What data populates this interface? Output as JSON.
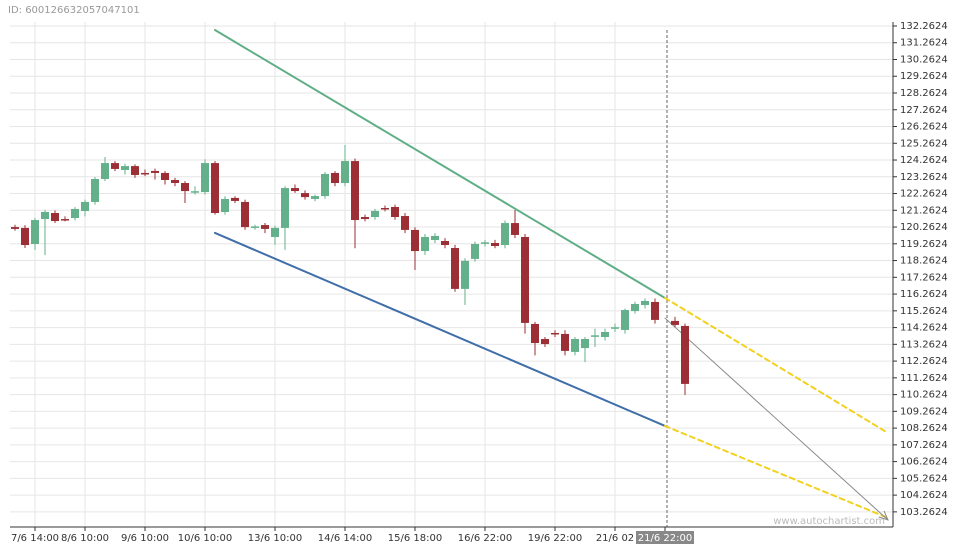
{
  "id_label": "ID: 600126632057047101",
  "watermark": "www.autochartist.com",
  "chart_data": {
    "type": "candlestick",
    "categories": [
      null,
      null,
      "7/6 14:00",
      null,
      null,
      null,
      null,
      "8/6 10:00",
      null,
      null,
      null,
      null,
      null,
      "9/6 10:00",
      null,
      null,
      null,
      null,
      null,
      "10/6 10:00",
      null,
      null,
      null,
      null,
      null,
      null,
      "13/6 10:00",
      null,
      null,
      null,
      null,
      null,
      null,
      "14/6 14:00",
      null,
      null,
      null,
      null,
      null,
      null,
      "15/6 18:00",
      null,
      null,
      null,
      null,
      null,
      null,
      "16/6 22:00",
      null,
      null,
      null,
      null,
      null,
      null,
      "19/6 22:00",
      null,
      null,
      null,
      null,
      null,
      "21/6 02",
      null,
      null,
      null,
      null,
      "21/6 22:00",
      null,
      null
    ],
    "marker_category": 65,
    "open": [
      120.26,
      120.21,
      119.25,
      120.74,
      121.1,
      120.74,
      120.8,
      121.22,
      121.76,
      123.13,
      124.08,
      123.67,
      123.9,
      123.49,
      123.61,
      123.49,
      123.07,
      122.89,
      122.35,
      122.35,
      124.08,
      121.16,
      122.0,
      121.76,
      120.26,
      120.38,
      119.67,
      120.21,
      122.59,
      122.29,
      121.94,
      122.11,
      123.49,
      122.89,
      124.2,
      120.86,
      120.86,
      121.4,
      121.46,
      120.92,
      120.09,
      118.83,
      119.49,
      119.43,
      119.01,
      116.57,
      118.36,
      119.31,
      119.31,
      119.19,
      120.5,
      119.67,
      114.48,
      113.58,
      113.94,
      113.88,
      112.81,
      113.04,
      113.76,
      113.7,
      114.24,
      114.12,
      115.25,
      115.61,
      115.79,
      null,
      114.66,
      114.36
    ],
    "high": [
      120.4,
      120.38,
      120.8,
      121.28,
      121.25,
      120.9,
      121.45,
      121.9,
      123.25,
      124.44,
      124.2,
      124.05,
      124.0,
      123.7,
      123.75,
      123.6,
      123.2,
      123.0,
      122.7,
      124.3,
      124.2,
      122.1,
      122.1,
      121.9,
      120.4,
      120.5,
      120.35,
      122.7,
      122.8,
      122.45,
      122.2,
      123.55,
      123.6,
      125.16,
      124.35,
      121.0,
      121.35,
      121.55,
      121.6,
      121.1,
      120.25,
      119.85,
      119.9,
      119.6,
      119.2,
      118.4,
      119.4,
      119.5,
      119.5,
      120.65,
      121.28,
      119.85,
      114.6,
      113.7,
      114.1,
      114.1,
      113.7,
      113.7,
      114.2,
      114.2,
      114.5,
      115.4,
      115.8,
      116.0,
      116.0,
      null,
      114.9,
      114.5
    ],
    "low": [
      120.05,
      119.01,
      118.89,
      118.59,
      120.5,
      120.6,
      120.65,
      120.9,
      121.6,
      123.0,
      123.6,
      123.4,
      123.2,
      123.3,
      123.1,
      122.8,
      122.7,
      121.7,
      122.2,
      122.2,
      121.0,
      121.0,
      121.7,
      120.1,
      120.1,
      119.9,
      119.2,
      118.9,
      122.3,
      121.9,
      121.8,
      121.95,
      122.7,
      122.7,
      119.0,
      120.6,
      120.7,
      121.2,
      120.7,
      119.9,
      117.7,
      118.6,
      119.3,
      119.0,
      116.4,
      115.61,
      118.2,
      119.1,
      119.0,
      119.0,
      119.6,
      113.9,
      112.6,
      113.1,
      113.7,
      112.6,
      112.6,
      112.2,
      113.1,
      113.5,
      114.0,
      113.9,
      115.1,
      115.4,
      114.5,
      null,
      114.3,
      110.24
    ],
    "close": [
      120.15,
      119.19,
      120.68,
      121.16,
      120.62,
      120.7,
      121.34,
      121.76,
      123.13,
      124.08,
      123.73,
      123.9,
      123.37,
      123.45,
      123.49,
      123.07,
      122.89,
      122.41,
      122.4,
      124.08,
      121.1,
      121.94,
      121.82,
      120.26,
      120.3,
      120.15,
      120.21,
      122.59,
      122.41,
      122.05,
      122.11,
      123.43,
      122.89,
      124.2,
      120.68,
      120.74,
      121.22,
      121.35,
      120.86,
      120.09,
      118.83,
      119.67,
      119.73,
      119.19,
      116.57,
      118.24,
      119.25,
      119.35,
      119.13,
      120.5,
      119.79,
      114.54,
      113.34,
      113.28,
      113.9,
      112.87,
      113.58,
      113.58,
      113.8,
      114.0,
      114.28,
      115.31,
      115.67,
      115.85,
      114.72,
      null,
      114.42,
      110.9
    ],
    "up_color": "#63b08a",
    "down_color": "#9b2f35",
    "trendlines": [
      {
        "color": "#5fae86",
        "dashed": false,
        "arrow": false,
        "x": [
          20,
          65
        ],
        "y": [
          132.02,
          116.03
        ]
      },
      {
        "color": "#f2d11f",
        "dashed": true,
        "arrow": false,
        "x": [
          65,
          87.3
        ],
        "y": [
          116.03,
          107.97
        ]
      },
      {
        "color": "#3f6ea8",
        "dashed": false,
        "arrow": false,
        "x": [
          20,
          65
        ],
        "y": [
          119.91,
          108.39
        ]
      },
      {
        "color": "#f2d11f",
        "dashed": true,
        "arrow": false,
        "x": [
          65,
          87.3
        ],
        "y": [
          108.39,
          102.9
        ]
      },
      {
        "color": "#888888",
        "dashed": false,
        "arrow": true,
        "x": [
          65,
          87.3
        ],
        "y": [
          114.83,
          102.78
        ]
      }
    ],
    "xlim": [
      -0.5,
      87.8
    ],
    "ylim": [
      102.36,
      132.5
    ],
    "yticks": [
      103.2624,
      104.2624,
      105.2624,
      106.2624,
      107.2624,
      108.2624,
      109.2624,
      110.2624,
      111.2624,
      112.2624,
      113.2624,
      114.2624,
      115.2624,
      116.2624,
      117.2624,
      118.2624,
      119.2624,
      120.2624,
      121.2624,
      122.2624,
      123.2624,
      124.2624,
      125.2624,
      126.2624,
      127.2624,
      128.2624,
      129.2624,
      130.2624,
      131.2624,
      132.2624
    ],
    "grid": true
  }
}
